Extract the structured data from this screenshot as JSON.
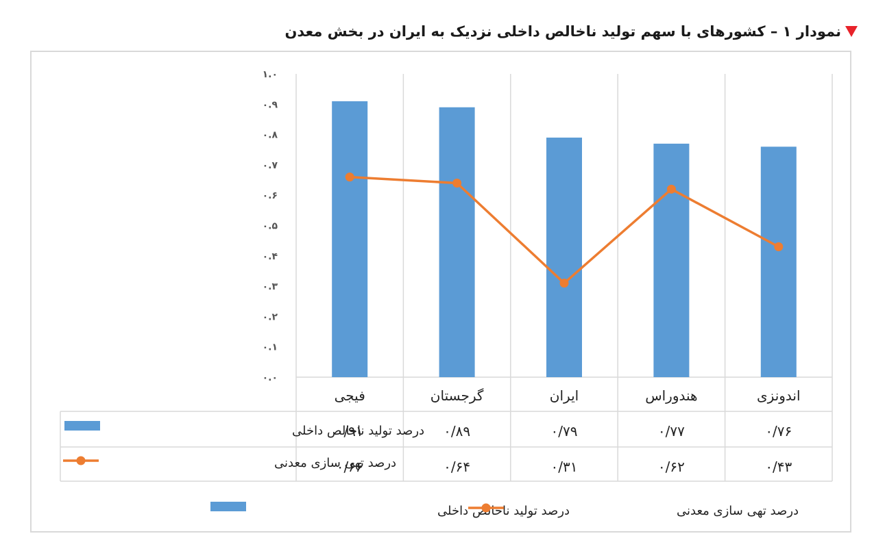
{
  "title": "نمودار ۱ – کشورهای با سهم تولید ناخالص داخلی نزدیک به ایران در بخش معدن",
  "colors": {
    "bar": "#5b9bd5",
    "line": "#ed7d31",
    "title_marker": "#e8232a",
    "grid": "#d9d9d9"
  },
  "chart_data": {
    "type": "bar",
    "title": "نمودار ۱ – کشورهای با سهم تولید ناخالص داخلی نزدیک به ایران در بخش معدن",
    "categories": [
      "فیجی",
      "گرجستان",
      "ایران",
      "هندوراس",
      "اندونزی"
    ],
    "ylim": [
      0,
      1.0
    ],
    "y_ticks": [
      "۰.۰",
      "۰.۱",
      "۰.۲",
      "۰.۳",
      "۰.۴",
      "۰.۵",
      "۰.۶",
      "۰.۷",
      "۰.۸",
      "۰.۹",
      "۱.۰"
    ],
    "grid": true,
    "legend_position": "bottom",
    "series": [
      {
        "name": "درصد تولید ناخالص داخلی",
        "type": "bar",
        "values": [
          0.91,
          0.89,
          0.79,
          0.77,
          0.76
        ],
        "labels": [
          "۰/۹۱",
          "۰/۸۹",
          "۰/۷۹",
          "۰/۷۷",
          "۰/۷۶"
        ]
      },
      {
        "name": "درصد تهی سازی معدنی",
        "type": "line",
        "values": [
          0.66,
          0.64,
          0.31,
          0.62,
          0.43
        ],
        "labels": [
          "۰/۶۶",
          "۰/۶۴",
          "۰/۳۱",
          "۰/۶۲",
          "۰/۴۳"
        ]
      }
    ]
  }
}
